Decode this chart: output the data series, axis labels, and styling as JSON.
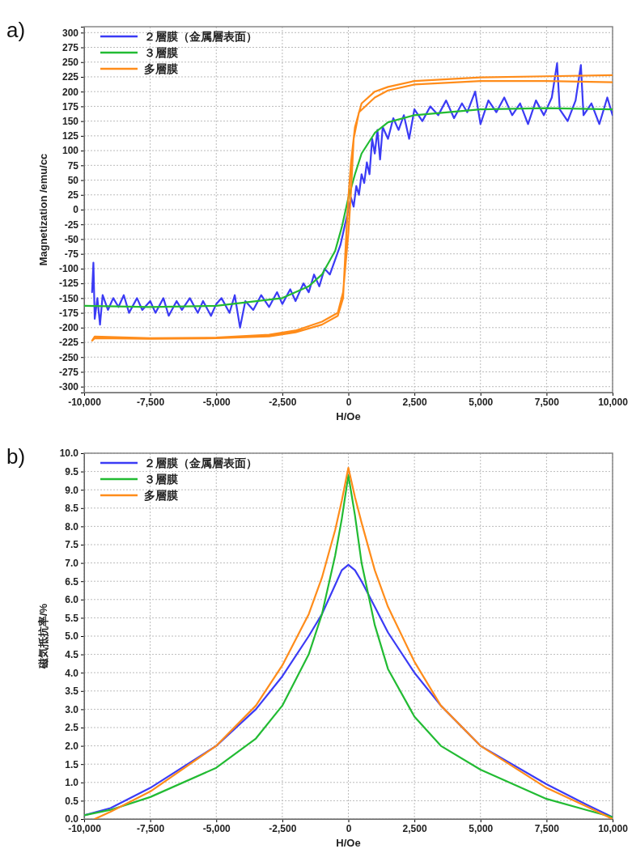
{
  "chart_data": [
    {
      "type": "line",
      "annotations": [
        "a)"
      ],
      "xlabel": "H/Oe",
      "ylabel": "Magnetization /emu/cc",
      "xlim": [
        -10000,
        10000
      ],
      "xticks": [
        {
          "value": -10000,
          "label": "-10,000"
        },
        {
          "value": -7500,
          "label": "-7,500"
        },
        {
          "value": -5000,
          "label": "-5,000"
        },
        {
          "value": -2500,
          "label": "-2,500"
        },
        0,
        {
          "value": 2500,
          "label": "2,500"
        },
        {
          "value": 5000,
          "label": "5,000"
        },
        {
          "value": 7500,
          "label": "7,500"
        },
        {
          "value": 10000,
          "label": "10,000"
        }
      ],
      "ylim": [
        -310,
        310
      ],
      "yticks": [
        -300,
        -275,
        -250,
        -225,
        -200,
        -175,
        -150,
        -125,
        -100,
        -75,
        -50,
        -25,
        0,
        25,
        50,
        75,
        100,
        125,
        150,
        175,
        200,
        225,
        250,
        275,
        300
      ],
      "grid": true,
      "legend": "top left",
      "line_style": "solid",
      "series": [
        {
          "name": "２層膜（金属層表面）",
          "color": "#3b3bf5",
          "x": [
            -9700,
            -9650,
            -9600,
            -9500,
            -9400,
            -9300,
            -9100,
            -8900,
            -8700,
            -8500,
            -8300,
            -8000,
            -7800,
            -7500,
            -7300,
            -7000,
            -6800,
            -6500,
            -6300,
            -6000,
            -5700,
            -5500,
            -5200,
            -5000,
            -4800,
            -4500,
            -4300,
            -4100,
            -3900,
            -3600,
            -3300,
            -3000,
            -2700,
            -2500,
            -2200,
            -2000,
            -1700,
            -1500,
            -1300,
            -1100,
            -900,
            -700,
            -500,
            -300,
            -200,
            0,
            100,
            200,
            300,
            400,
            500,
            600,
            700,
            800,
            900,
            1000,
            1100,
            1200,
            1300,
            1500,
            1700,
            1900,
            2100,
            2300,
            2500,
            2800,
            3100,
            3400,
            3700,
            4000,
            4300,
            4500,
            4800,
            5000,
            5300,
            5600,
            5900,
            6200,
            6500,
            6800,
            7100,
            7400,
            7700,
            7900,
            8000,
            8300,
            8600,
            8800,
            8900,
            9200,
            9500,
            9800,
            10000
          ],
          "values": [
            -140,
            -90,
            -185,
            -150,
            -195,
            -145,
            -170,
            -150,
            -165,
            -145,
            -175,
            -150,
            -170,
            -155,
            -175,
            -150,
            -180,
            -155,
            -170,
            -150,
            -175,
            -155,
            -180,
            -160,
            -150,
            -175,
            -145,
            -200,
            -155,
            -170,
            -145,
            -165,
            -140,
            -160,
            -135,
            -155,
            -125,
            -140,
            -110,
            -130,
            -100,
            -110,
            -85,
            -60,
            -40,
            0,
            20,
            5,
            40,
            25,
            60,
            45,
            80,
            60,
            120,
            95,
            135,
            85,
            140,
            120,
            155,
            135,
            160,
            120,
            170,
            150,
            175,
            160,
            185,
            155,
            180,
            165,
            200,
            145,
            185,
            165,
            190,
            160,
            180,
            145,
            185,
            160,
            190,
            248,
            170,
            150,
            185,
            245,
            160,
            180,
            145,
            190,
            160
          ]
        },
        {
          "name": "３層膜",
          "color": "#22bb33",
          "x": [
            -10000,
            -7500,
            -5000,
            -2500,
            -1500,
            -1000,
            -500,
            -250,
            0,
            250,
            500,
            1000,
            1500,
            2500,
            5000,
            7500,
            10000
          ],
          "values": [
            -163,
            -165,
            -163,
            -150,
            -130,
            -110,
            -70,
            -30,
            20,
            60,
            95,
            130,
            148,
            160,
            170,
            172,
            170
          ]
        },
        {
          "name": "多層膜",
          "color": "#ff8c1a",
          "x": [
            10000,
            7500,
            5000,
            2500,
            1500,
            1000,
            500,
            250,
            100,
            0,
            -100,
            -200,
            -400,
            -1000,
            -2000,
            -3000,
            -5000,
            -7500,
            -9600,
            -9700,
            -9600,
            -7500,
            -5000,
            -3000,
            -2000,
            -1000,
            -400,
            -200,
            0,
            100,
            200,
            400,
            1000,
            1500,
            2500,
            5000,
            7500,
            10000
          ],
          "values": [
            228,
            226,
            224,
            218,
            208,
            200,
            180,
            140,
            80,
            20,
            -60,
            -150,
            -180,
            -195,
            -208,
            -215,
            -218,
            -219,
            -218,
            -222,
            -215,
            -218,
            -217,
            -212,
            -205,
            -190,
            -175,
            -140,
            -40,
            30,
            120,
            165,
            190,
            202,
            212,
            218,
            218,
            216
          ]
        }
      ]
    },
    {
      "type": "line",
      "annotations": [
        "b)"
      ],
      "xlabel": "H/Oe",
      "ylabel": "磁気抵抗率/%",
      "xlim": [
        -10000,
        10000
      ],
      "xticks": [
        {
          "value": -10000,
          "label": "-10,000"
        },
        {
          "value": -7500,
          "label": "-7,500"
        },
        {
          "value": -5000,
          "label": "-5,000"
        },
        {
          "value": -2500,
          "label": "-2,500"
        },
        0,
        {
          "value": 2500,
          "label": "2,500"
        },
        {
          "value": 5000,
          "label": "5,000"
        },
        {
          "value": 7500,
          "label": "7,500"
        },
        {
          "value": 10000,
          "label": "10,000"
        }
      ],
      "ylim": [
        0,
        10
      ],
      "yticks": [
        {
          "value": 0,
          "label": "0.0"
        },
        0.5,
        {
          "value": 1,
          "label": "1.0"
        },
        1.5,
        {
          "value": 2,
          "label": "2.0"
        },
        2.5,
        {
          "value": 3,
          "label": "3.0"
        },
        3.5,
        {
          "value": 4,
          "label": "4.0"
        },
        4.5,
        {
          "value": 5,
          "label": "5.0"
        },
        5.5,
        {
          "value": 6,
          "label": "6.0"
        },
        6.5,
        {
          "value": 7,
          "label": "7.0"
        },
        7.5,
        {
          "value": 8,
          "label": "8.0"
        },
        8.5,
        {
          "value": 9,
          "label": "9.0"
        },
        9.5,
        {
          "value": 10,
          "label": "10.0"
        }
      ],
      "grid": true,
      "legend": "top left",
      "line_style": "solid",
      "series": [
        {
          "name": "２層膜（金属層表面）",
          "color": "#3b3bf5",
          "x": [
            -10000,
            -9000,
            -7500,
            -5000,
            -3500,
            -2500,
            -1500,
            -1000,
            -500,
            -250,
            0,
            250,
            500,
            1000,
            1500,
            2500,
            3500,
            5000,
            7500,
            9000,
            10000
          ],
          "values": [
            0.1,
            0.3,
            0.85,
            2.0,
            3.0,
            3.9,
            5.0,
            5.6,
            6.4,
            6.8,
            6.95,
            6.8,
            6.5,
            5.8,
            5.1,
            4.0,
            3.1,
            2.0,
            0.95,
            0.4,
            0.05
          ]
        },
        {
          "name": "３層膜",
          "color": "#22bb33",
          "x": [
            -10000,
            -9000,
            -7500,
            -5000,
            -3500,
            -2500,
            -1500,
            -1000,
            -500,
            -250,
            0,
            250,
            500,
            1000,
            1500,
            2500,
            3500,
            5000,
            7500,
            9000,
            10000
          ],
          "values": [
            0.1,
            0.25,
            0.6,
            1.4,
            2.2,
            3.1,
            4.5,
            5.6,
            7.2,
            8.2,
            9.4,
            8.3,
            7.0,
            5.3,
            4.1,
            2.8,
            2.0,
            1.35,
            0.55,
            0.25,
            0.05
          ]
        },
        {
          "name": "多層膜",
          "color": "#ff8c1a",
          "x": [
            -9600,
            -9000,
            -7500,
            -5000,
            -3500,
            -2500,
            -1500,
            -1000,
            -500,
            -250,
            0,
            250,
            500,
            1000,
            1500,
            2500,
            3500,
            5000,
            7500,
            9000,
            10000
          ],
          "values": [
            0.0,
            0.2,
            0.75,
            2.0,
            3.1,
            4.2,
            5.6,
            6.6,
            7.9,
            8.7,
            9.6,
            8.8,
            8.1,
            6.8,
            5.8,
            4.3,
            3.1,
            2.0,
            0.85,
            0.35,
            0.0
          ]
        }
      ]
    }
  ]
}
